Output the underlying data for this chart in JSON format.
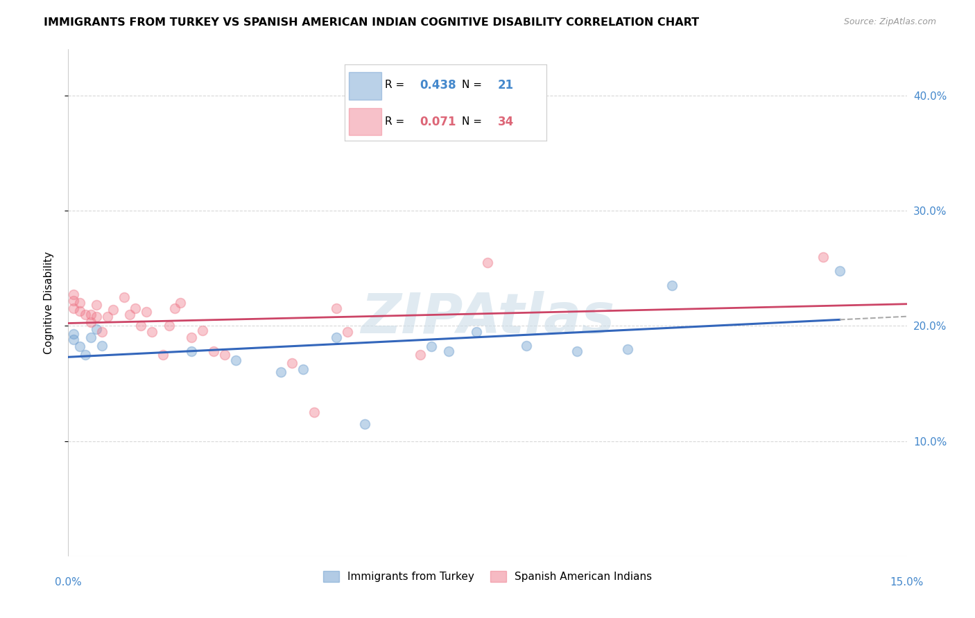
{
  "title": "IMMIGRANTS FROM TURKEY VS SPANISH AMERICAN INDIAN COGNITIVE DISABILITY CORRELATION CHART",
  "source": "Source: ZipAtlas.com",
  "ylabel": "Cognitive Disability",
  "series1_name": "Immigrants from Turkey",
  "series2_name": "Spanish American Indians",
  "legend1_color": "#6699cc",
  "legend2_color": "#ee7788",
  "xlim": [
    0.0,
    0.15
  ],
  "ylim": [
    0.0,
    0.44
  ],
  "ylabel_right_vals": [
    0.1,
    0.2,
    0.3,
    0.4
  ],
  "background_color": "#ffffff",
  "grid_color": "#d8d8d8",
  "watermark": "ZIPAtlas",
  "circle_size": 100,
  "blue_line_color": "#3366bb",
  "pink_line_color": "#cc4466",
  "dashed_line_color": "#aaaaaa",
  "blue_x": [
    0.001,
    0.001,
    0.002,
    0.003,
    0.004,
    0.005,
    0.006,
    0.022,
    0.03,
    0.038,
    0.042,
    0.048,
    0.053,
    0.065,
    0.068,
    0.073,
    0.082,
    0.091,
    0.1,
    0.108,
    0.138
  ],
  "blue_y": [
    0.193,
    0.188,
    0.182,
    0.175,
    0.19,
    0.197,
    0.183,
    0.178,
    0.17,
    0.16,
    0.162,
    0.19,
    0.115,
    0.182,
    0.178,
    0.195,
    0.183,
    0.178,
    0.18,
    0.235,
    0.248
  ],
  "pink_x": [
    0.001,
    0.001,
    0.001,
    0.002,
    0.002,
    0.003,
    0.004,
    0.004,
    0.005,
    0.005,
    0.006,
    0.007,
    0.008,
    0.01,
    0.011,
    0.012,
    0.013,
    0.014,
    0.015,
    0.017,
    0.018,
    0.019,
    0.02,
    0.022,
    0.024,
    0.026,
    0.028,
    0.04,
    0.044,
    0.048,
    0.05,
    0.063,
    0.075,
    0.135
  ],
  "pink_y": [
    0.215,
    0.227,
    0.222,
    0.22,
    0.213,
    0.21,
    0.21,
    0.203,
    0.218,
    0.208,
    0.195,
    0.208,
    0.214,
    0.225,
    0.21,
    0.215,
    0.2,
    0.212,
    0.195,
    0.175,
    0.2,
    0.215,
    0.22,
    0.19,
    0.196,
    0.178,
    0.175,
    0.168,
    0.125,
    0.215,
    0.195,
    0.175,
    0.255,
    0.26
  ],
  "blue_R_val": "0.438",
  "blue_N_val": "21",
  "pink_R_val": "0.071",
  "pink_N_val": "34",
  "blue_text_color": "#4488cc",
  "pink_text_color": "#dd6677"
}
